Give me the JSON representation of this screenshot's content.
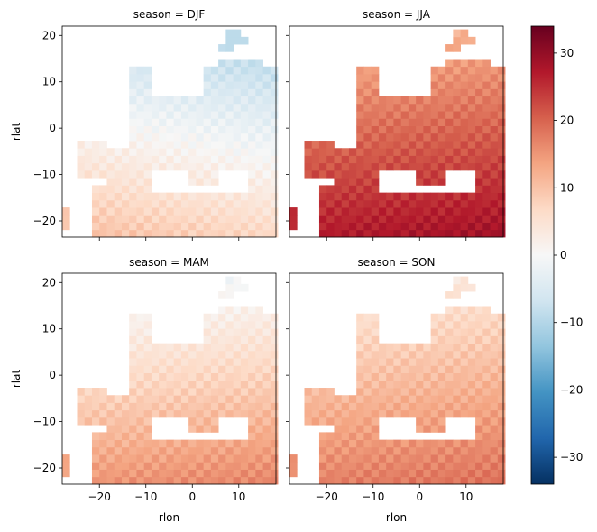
{
  "chart_data": {
    "type": "heatmap",
    "layout": "2x2 facet grid",
    "x_label": "rlon",
    "y_label": "rlat",
    "xlim": [
      -28,
      18
    ],
    "ylim": [
      -23.5,
      22
    ],
    "x_ticks": [
      -20,
      -10,
      0,
      10
    ],
    "x_tick_labels": [
      "−20",
      "−10",
      "0",
      "10"
    ],
    "y_ticks": [
      -20,
      -10,
      0,
      10,
      20
    ],
    "y_tick_labels": [
      "−20",
      "−10",
      "0",
      "10",
      "20"
    ],
    "panels": [
      {
        "title": "season = DJF",
        "season": "DJF",
        "mean_value": 2,
        "south_value": 11,
        "north_value": -8,
        "range": [
          -9,
          15
        ]
      },
      {
        "title": "season = JJA",
        "season": "JJA",
        "mean_value": 19,
        "south_value": 27,
        "north_value": 10,
        "range": [
          8,
          33
        ]
      },
      {
        "title": "season = MAM",
        "season": "MAM",
        "mean_value": 9,
        "south_value": 15,
        "north_value": -3,
        "range": [
          -4,
          22
        ]
      },
      {
        "title": "season = SON",
        "season": "SON",
        "mean_value": 11,
        "south_value": 17,
        "north_value": 2,
        "range": [
          1,
          24
        ]
      }
    ],
    "colorbar": {
      "colormap": "RdBu_r",
      "vmin": -34,
      "vmax": 34,
      "ticks": [
        -30,
        -20,
        -10,
        0,
        10,
        20,
        30
      ],
      "tick_labels": [
        "−30",
        "−20",
        "−10",
        "0",
        "10",
        "20",
        "30"
      ]
    }
  }
}
